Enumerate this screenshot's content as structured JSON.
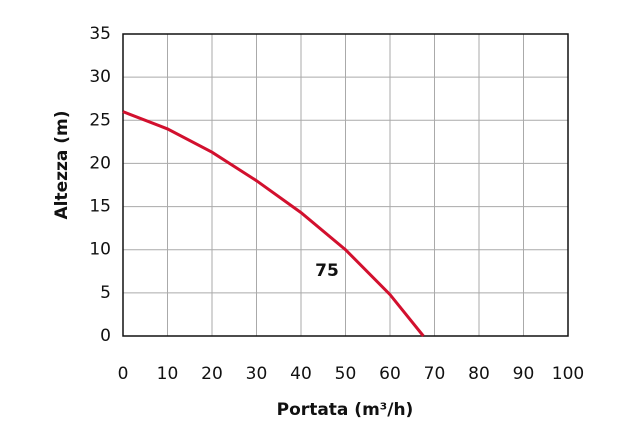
{
  "chart_data": {
    "type": "line",
    "x_label": "Portata (m³/h)",
    "y_label": "Altezza (m)",
    "annotation": "75",
    "x": [
      0,
      10,
      20,
      30,
      40,
      50,
      60,
      67.5
    ],
    "series": [
      {
        "name": "75",
        "color": "#d2102e",
        "values": [
          26,
          24,
          21.3,
          18,
          14.3,
          10,
          4.8,
          0
        ]
      }
    ],
    "xlim": [
      0,
      100
    ],
    "ylim": [
      0,
      35
    ],
    "xticks": [
      0,
      10,
      20,
      30,
      40,
      50,
      60,
      70,
      80,
      90,
      100
    ],
    "yticks": [
      0,
      5,
      10,
      15,
      20,
      25,
      30,
      35
    ],
    "grid": true,
    "annotation_color": "#1f3f7a"
  }
}
